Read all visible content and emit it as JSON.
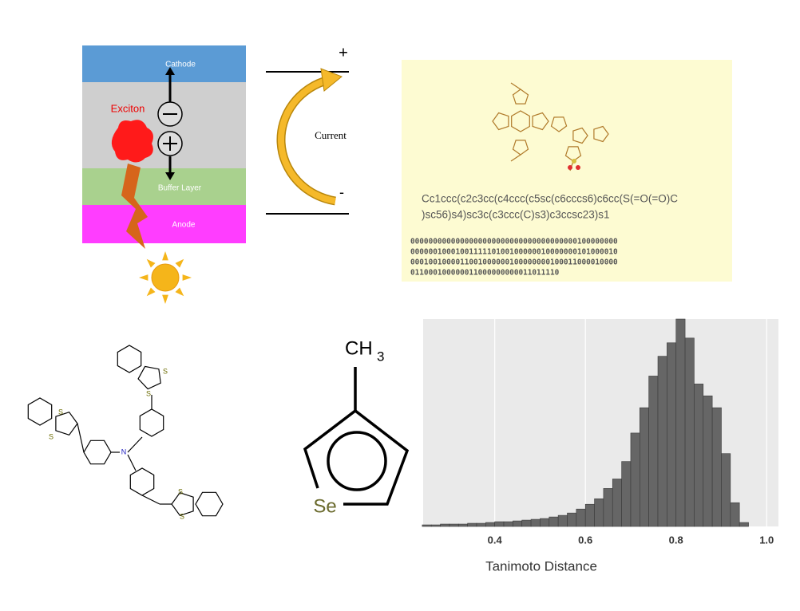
{
  "solar_cell": {
    "layers": [
      "Cathode",
      "Buffer Layer",
      "Anode"
    ],
    "exciton": "Exciton"
  },
  "circuit": {
    "plus": "+",
    "minus": "-",
    "label": "Current"
  },
  "smiles_panel": {
    "smiles": [
      "Cc1ccc(c2c3cc(c4ccc(c5sc(c6cccs6)c6cc(S(=O(=O)C",
      ")sc56)s4)sc3c(c3ccc(C)s3)c3ccsc23)s1"
    ],
    "fingerprint": [
      "0000000000000000000000000000000000000100000000",
      "0000001000100111110100100000010000000101000010",
      "0001001000011001000000100000000100011000010000",
      "011000100000011000000000011011110"
    ]
  },
  "molecule": {
    "atoms": [
      "S",
      "S",
      "S",
      "S",
      "S",
      "S",
      "N"
    ]
  },
  "selenophene": {
    "methyl": "CH",
    "methyl_sub": "3",
    "heteroatom": "Se"
  },
  "chart_data": {
    "type": "histogram",
    "xlabel": "Tanimoto Distance",
    "bins": [
      0.24,
      0.26,
      0.28,
      0.3,
      0.32,
      0.34,
      0.36,
      0.38,
      0.4,
      0.42,
      0.44,
      0.46,
      0.48,
      0.5,
      0.52,
      0.54,
      0.56,
      0.58,
      0.6,
      0.62,
      0.64,
      0.66,
      0.68,
      0.7,
      0.72,
      0.74,
      0.76,
      0.78,
      0.8,
      0.82,
      0.84,
      0.86,
      0.88,
      0.9,
      0.92,
      0.94,
      0.96
    ],
    "values": [
      2,
      2,
      3,
      3,
      3,
      4,
      4,
      5,
      6,
      6,
      7,
      8,
      9,
      10,
      12,
      14,
      17,
      22,
      28,
      35,
      48,
      60,
      82,
      118,
      150,
      190,
      215,
      232,
      262,
      238,
      180,
      165,
      150,
      92,
      30,
      5
    ],
    "color": "#666666",
    "xlim": [
      0.242,
      1.026
    ],
    "ylim": [
      0,
      262
    ],
    "xticks": [
      0.4,
      0.6,
      0.8,
      {
        "value": 1,
        "label": "1.0"
      }
    ],
    "grid": true
  }
}
